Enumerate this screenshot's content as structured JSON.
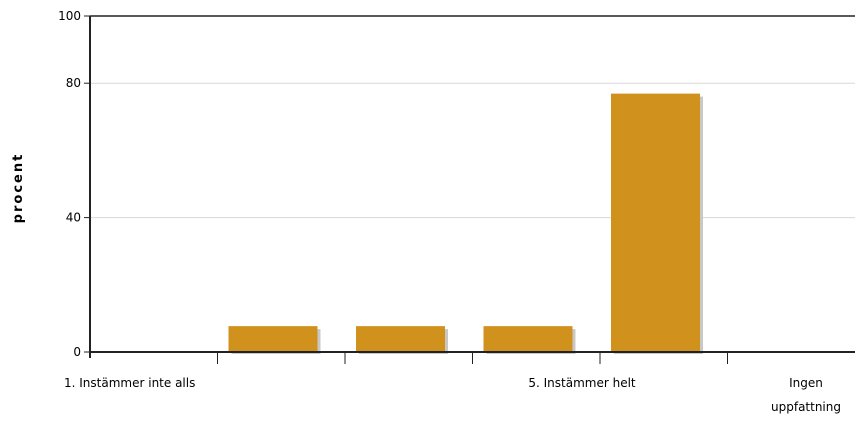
{
  "chart_data": {
    "type": "bar",
    "categories": [
      "1. Instämmer inte alls",
      "2",
      "3",
      "4",
      "5. Instämmer helt",
      "Ingen uppfattning"
    ],
    "category_labels": [
      "1. Instämmer inte alls",
      "",
      "",
      "",
      "5. Instämmer helt",
      "Ingen uppfattning"
    ],
    "values": [
      0,
      7.7,
      7.7,
      7.7,
      76.9,
      0
    ],
    "ylabel": "procent",
    "xlabel": "",
    "ylim": [
      0,
      100
    ],
    "yticks": [
      0,
      40,
      80,
      100
    ],
    "grid": true,
    "colors": {
      "bar": "#d0921c",
      "bar_shadow": "#c8c8c8",
      "grid": "#d8d8d8",
      "axis": "#222222"
    }
  }
}
